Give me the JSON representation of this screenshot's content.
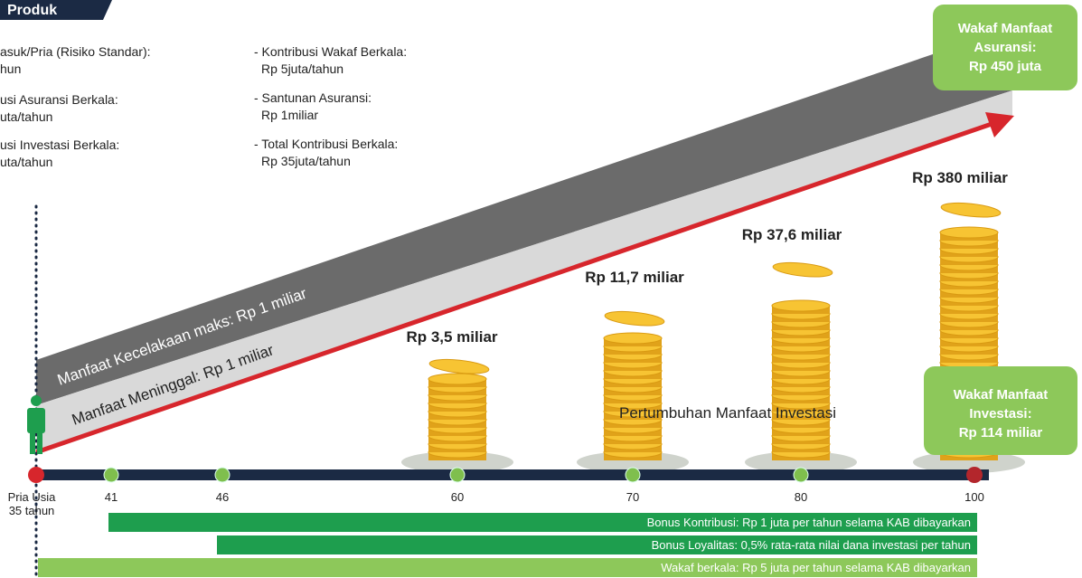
{
  "header": {
    "title": "Produk"
  },
  "left_notes": [
    [
      "asuk/Pria (Risiko Standar):",
      "hun"
    ],
    [
      "usi Asuransi Berkala:",
      "uta/tahun"
    ],
    [
      "usi Investasi Berkala:",
      "uta/tahun"
    ]
  ],
  "notes": [
    [
      "- Kontribusi Wakaf Berkala:",
      "Rp 5juta/tahun"
    ],
    [
      "- Santunan Asuransi:",
      "Rp 1miliar"
    ],
    [
      "- Total Kontribusi Berkala:",
      "Rp 35juta/tahun"
    ]
  ],
  "callouts": [
    [
      "Wakaf Manfaat",
      "Asuransi:",
      "Rp 450 juta"
    ],
    [
      "Wakaf Manfaat",
      "Investasi:",
      "Rp 114 miliar"
    ]
  ],
  "bands": [
    "Manfaat Kecelakaan maks: Rp 1 miliar",
    "Manfaat Meninggal: Rp 1 miliar"
  ],
  "coin_labels": [
    "Rp 3,5 miliar",
    "Rp 11,7 miliar",
    "Rp 37,6 miliar",
    "Rp 380 miliar"
  ],
  "growth_label": "Pertumbuhan Manfaat Investasi",
  "timeline": {
    "start_label": [
      "Pria Usia",
      "35 tahun"
    ],
    "ages": [
      "41",
      "46",
      "60",
      "70",
      "80",
      "100"
    ]
  },
  "bars": [
    "Bonus Kontribusi: Rp 1 juta per tahun selama KAB dibayarkan",
    "Bonus Loyalitas: 0,5% rata-rata nilai dana investasi per tahun",
    "Wakaf berkala: Rp 5 juta per tahun selama KAB dibayarkan"
  ]
}
